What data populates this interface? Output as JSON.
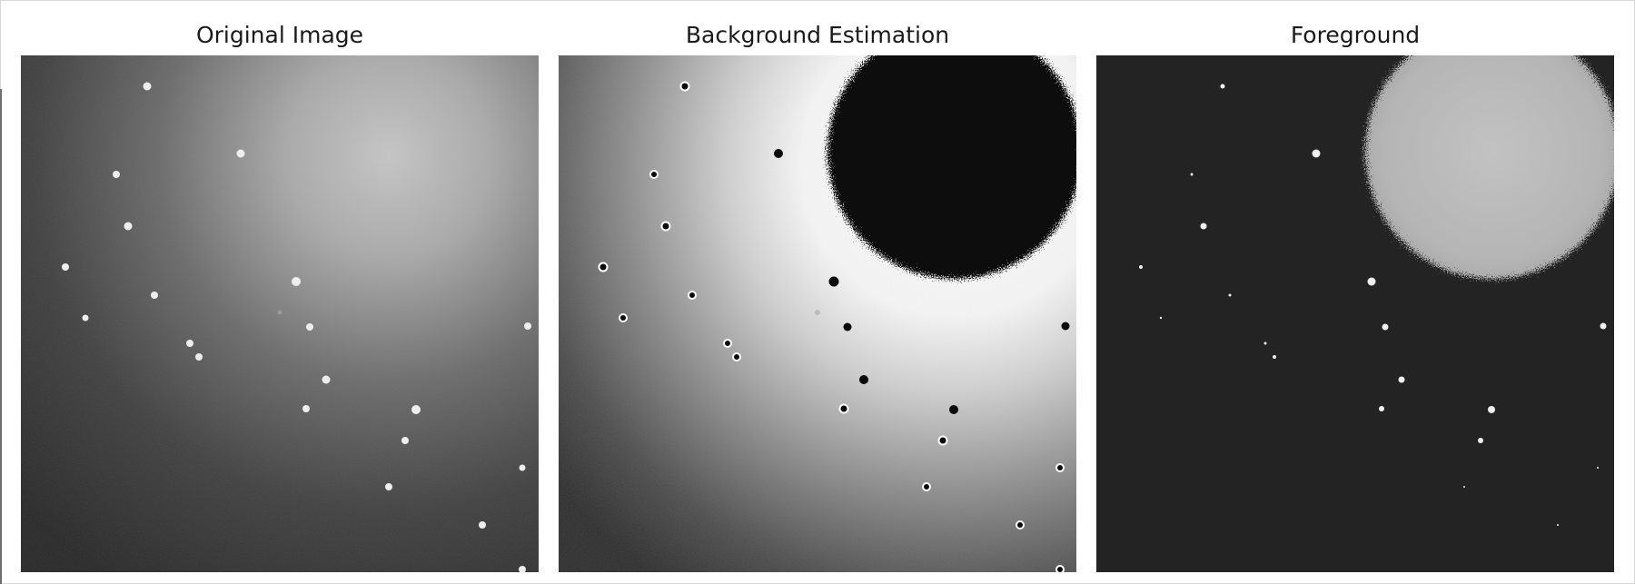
{
  "figure": {
    "panels": [
      {
        "title": "Original Image"
      },
      {
        "title": "Background Estimation"
      },
      {
        "title": "Foreground"
      }
    ]
  },
  "colors": {
    "original_bright": "#c4c4c4",
    "original_dark": "#262626",
    "background_white": "#f5f5f5",
    "background_dark": "#2a2a2a",
    "blob_black": "#0b0b0b",
    "foreground_bg": "#232323",
    "foreground_blob": "#bdbdbd",
    "spot": "#f2f2f2"
  }
}
